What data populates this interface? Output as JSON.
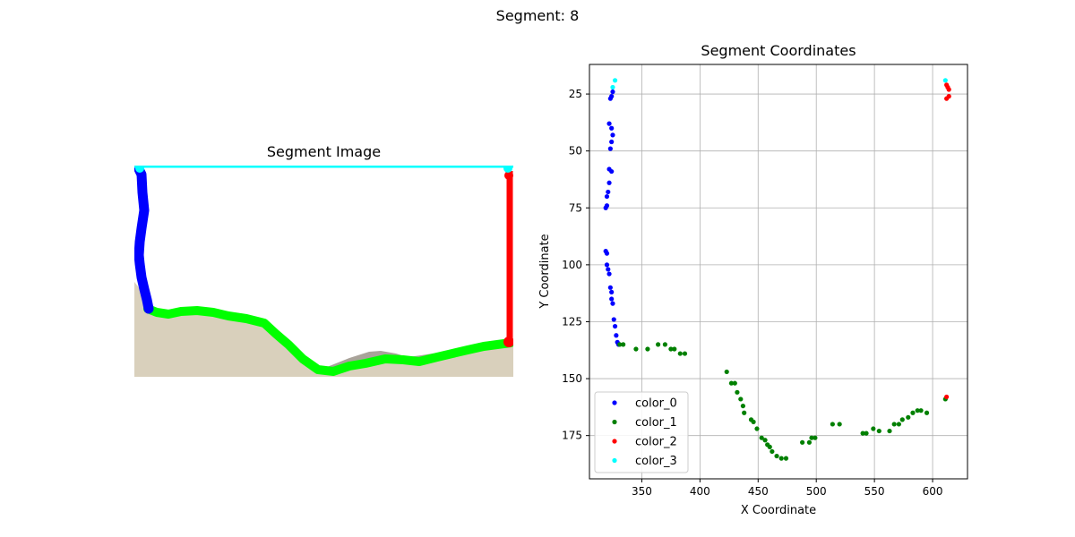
{
  "suptitle": "Segment: 8",
  "colors": {
    "color_0": "#0000ff",
    "color_1": "#008000",
    "color_2": "#ff0000",
    "color_3": "#00ffff",
    "img_green": "#00ff00",
    "img_terrain": "#d9d0bc",
    "img_shadow": "#a9a39a"
  },
  "chart_data": [
    {
      "type": "image",
      "title": "Segment Image"
    },
    {
      "type": "scatter",
      "title": "Segment Coordinates",
      "xlabel": "X Coordinate",
      "ylabel": "Y Coordinate",
      "xlim": [
        305,
        630
      ],
      "ylim": [
        194,
        12
      ],
      "y_inverted": true,
      "xticks": [
        350,
        400,
        450,
        500,
        550,
        600
      ],
      "yticks": [
        25,
        50,
        75,
        100,
        125,
        150,
        175
      ],
      "grid": true,
      "legend_position": "lower-left",
      "series": [
        {
          "name": "color_0",
          "points": [
            [
              325,
              24
            ],
            [
              324,
              26
            ],
            [
              323,
              27
            ],
            [
              322,
              38
            ],
            [
              324,
              40
            ],
            [
              325,
              43
            ],
            [
              324,
              46
            ],
            [
              323,
              49
            ],
            [
              322,
              58
            ],
            [
              324,
              59
            ],
            [
              322,
              64
            ],
            [
              321,
              68
            ],
            [
              320,
              70
            ],
            [
              320,
              74
            ],
            [
              319,
              75
            ],
            [
              319,
              94
            ],
            [
              320,
              95
            ],
            [
              320,
              100
            ],
            [
              321,
              102
            ],
            [
              322,
              104
            ],
            [
              323,
              110
            ],
            [
              324,
              112
            ],
            [
              324,
              115
            ],
            [
              325,
              117
            ],
            [
              326,
              124
            ],
            [
              327,
              127
            ],
            [
              328,
              131
            ],
            [
              329,
              134
            ],
            [
              330,
              135
            ]
          ]
        },
        {
          "name": "color_1",
          "points": [
            [
              331,
              135
            ],
            [
              334,
              135
            ],
            [
              345,
              137
            ],
            [
              355,
              137
            ],
            [
              364,
              135
            ],
            [
              370,
              135
            ],
            [
              375,
              137
            ],
            [
              378,
              137
            ],
            [
              383,
              139
            ],
            [
              387,
              139
            ],
            [
              423,
              147
            ],
            [
              427,
              152
            ],
            [
              430,
              152
            ],
            [
              432,
              156
            ],
            [
              435,
              159
            ],
            [
              437,
              162
            ],
            [
              438,
              165
            ],
            [
              444,
              168
            ],
            [
              446,
              169
            ],
            [
              449,
              172
            ],
            [
              453,
              176
            ],
            [
              456,
              177
            ],
            [
              458,
              179
            ],
            [
              460,
              180
            ],
            [
              462,
              182
            ],
            [
              466,
              184
            ],
            [
              470,
              185
            ],
            [
              474,
              185
            ],
            [
              488,
              178
            ],
            [
              494,
              178
            ],
            [
              496,
              176
            ],
            [
              499,
              176
            ],
            [
              514,
              170
            ],
            [
              520,
              170
            ],
            [
              540,
              174
            ],
            [
              543,
              174
            ],
            [
              549,
              172
            ],
            [
              554,
              173
            ],
            [
              563,
              173
            ],
            [
              567,
              170
            ],
            [
              571,
              170
            ],
            [
              574,
              168
            ],
            [
              579,
              167
            ],
            [
              583,
              165
            ],
            [
              587,
              164
            ],
            [
              590,
              164
            ],
            [
              595,
              165
            ],
            [
              611,
              159
            ]
          ]
        },
        {
          "name": "color_2",
          "points": [
            [
              612,
              21
            ],
            [
              613,
              22
            ],
            [
              614,
              23
            ],
            [
              614,
              26
            ],
            [
              612,
              27
            ],
            [
              612,
              158
            ]
          ]
        },
        {
          "name": "color_3",
          "points": [
            [
              325,
              22
            ],
            [
              327,
              19
            ],
            [
              611,
              19
            ]
          ]
        }
      ]
    }
  ]
}
